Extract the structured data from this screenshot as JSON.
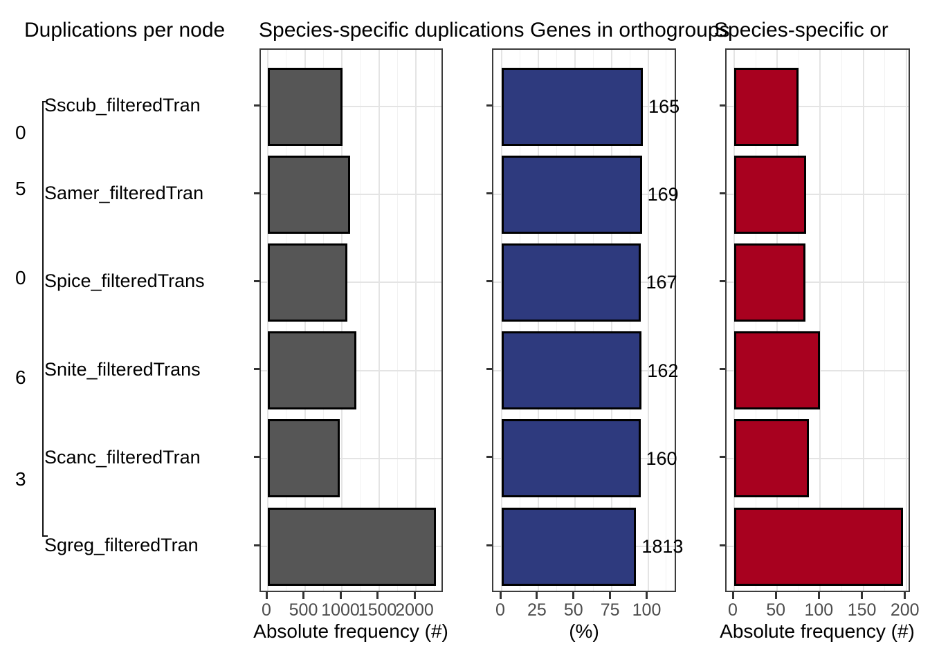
{
  "figure_titles": [
    {
      "text": "Duplications per node"
    },
    {
      "text": "Species-specific duplications"
    },
    {
      "text": "Genes in orthogroups"
    },
    {
      "text": "Species-specific or"
    }
  ],
  "tree": {
    "tip_labels": [
      "Sscub_filteredTran",
      "Samer_filteredTran",
      "Spice_filteredTrans",
      "Snite_filteredTrans",
      "Scanc_filteredTran",
      "Sgreg_filteredTran"
    ],
    "internal_node_labels_clipped": [
      "0",
      "5",
      "0",
      "6",
      "3"
    ]
  },
  "chart_data": [
    {
      "type": "bar",
      "orientation": "horizontal",
      "title": "Species-specific duplications",
      "categories": [
        "Sscub_filteredTran",
        "Samer_filteredTran",
        "Spice_filteredTrans",
        "Snite_filteredTrans",
        "Scanc_filteredTran",
        "Sgreg_filteredTran"
      ],
      "values": [
        1005,
        1110,
        1075,
        1195,
        970,
        2270
      ],
      "xlabel": "Absolute frequency (#)",
      "xticks": [
        0,
        500,
        1000,
        1500,
        2000
      ],
      "xtick_labels": [
        "0",
        "500",
        "1000",
        "1500",
        "2000"
      ],
      "xlim": [
        0,
        2380
      ],
      "grid": true,
      "bar_fill": "#565656",
      "bar_stroke": "#000000"
    },
    {
      "type": "bar",
      "orientation": "horizontal",
      "title": "Genes in orthogroups",
      "categories": [
        "Sscub_filteredTran",
        "Samer_filteredTran",
        "Spice_filteredTrans",
        "Snite_filteredTrans",
        "Scanc_filteredTran",
        "Sgreg_filteredTran"
      ],
      "values": [
        96.5,
        95.8,
        94.8,
        95.7,
        94.8,
        91.9
      ],
      "bar_labels": [
        "165",
        "169",
        "167",
        "162",
        "160",
        "1813"
      ],
      "xlabel": "(%)",
      "xticks": [
        0,
        25,
        50,
        75,
        100
      ],
      "xtick_labels": [
        "0",
        "25",
        "50",
        "75",
        "100"
      ],
      "xlim": [
        0,
        120
      ],
      "grid": true,
      "bar_fill": "#2e3a7e",
      "bar_stroke": "#000000"
    },
    {
      "type": "bar",
      "orientation": "horizontal",
      "title": "Species-specific or",
      "categories": [
        "Sscub_filteredTran",
        "Samer_filteredTran",
        "Spice_filteredTrans",
        "Snite_filteredTrans",
        "Scanc_filteredTran",
        "Sgreg_filteredTran"
      ],
      "values": [
        75,
        84,
        83,
        100,
        87,
        196
      ],
      "xlabel": "Absolute frequency (#)",
      "xticks": [
        0,
        50,
        100,
        150,
        200
      ],
      "xtick_labels": [
        "0",
        "50",
        "100",
        "150",
        "200"
      ],
      "xlim": [
        0,
        207
      ],
      "grid": true,
      "bar_fill": "#a8011f",
      "bar_stroke": "#000000"
    }
  ],
  "colors": {
    "gray_bar": "#565656",
    "blue_bar": "#2e3a7e",
    "red_bar": "#a8011f",
    "panel_border": "#3c3c3c",
    "grid_major": "#e4e4e4",
    "grid_minor": "#f1f1f1",
    "tick_mark": "#333333",
    "tick_label": "#4d4d4d"
  }
}
